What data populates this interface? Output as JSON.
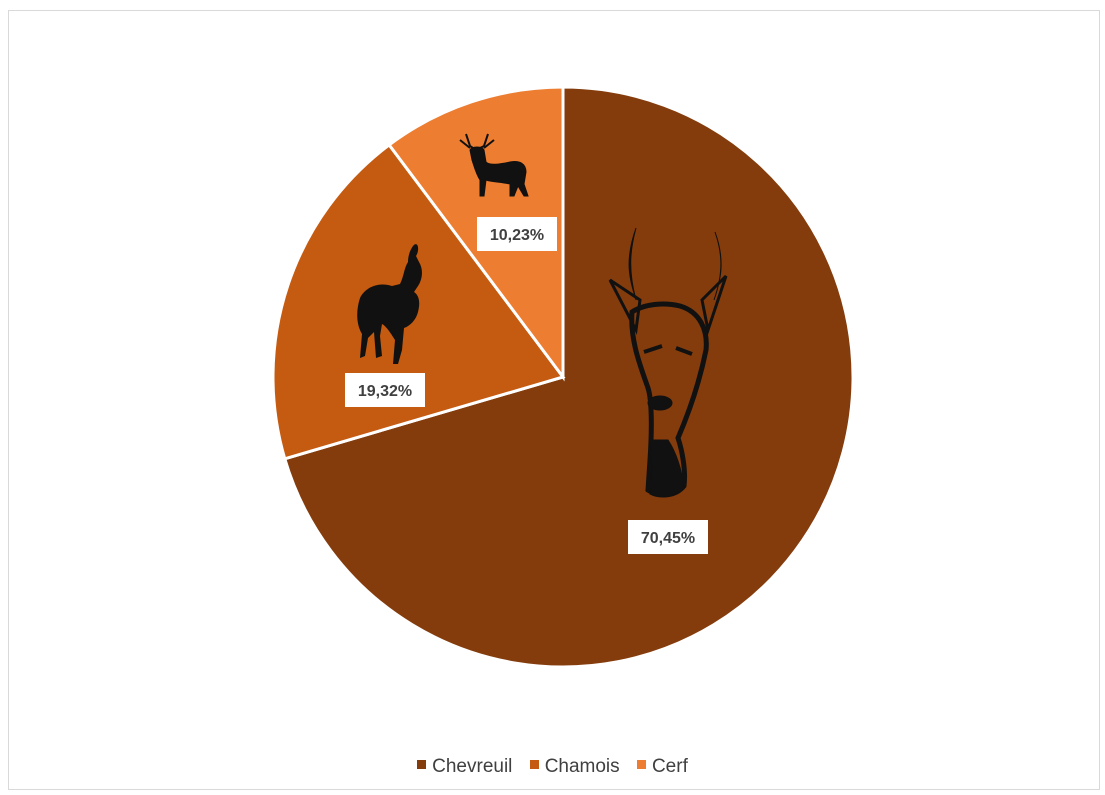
{
  "chart_data": {
    "type": "pie",
    "title": "",
    "categories": [
      "Chevreuil",
      "Chamois",
      "Cerf"
    ],
    "values": [
      70.45,
      19.32,
      10.23
    ],
    "data_labels": [
      "70,45%",
      "19,32%",
      "10,23%"
    ],
    "colors": [
      "#843C0C",
      "#C55A11",
      "#ED7D31"
    ],
    "icons": [
      "roe-deer-head-icon",
      "chamois-icon",
      "red-deer-icon"
    ],
    "legend_position": "bottom",
    "start_angle": "12 o'clock",
    "direction": "clockwise"
  },
  "legend": {
    "items": [
      {
        "label": "Chevreuil",
        "color": "#843C0C"
      },
      {
        "label": "Chamois",
        "color": "#C55A11"
      },
      {
        "label": "Cerf",
        "color": "#ED7D31"
      }
    ]
  }
}
